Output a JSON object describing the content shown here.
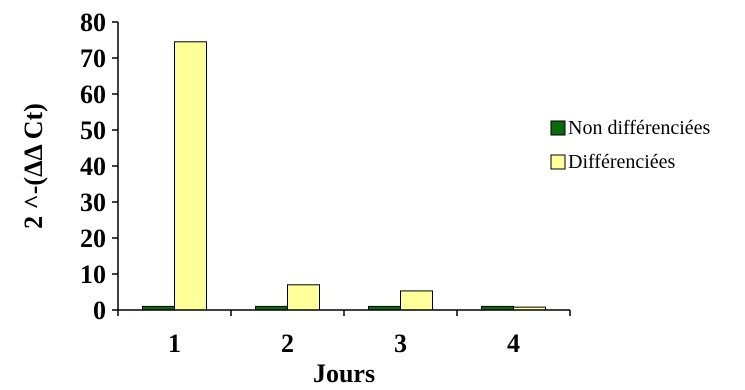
{
  "chart_data": {
    "type": "bar",
    "categories": [
      "1",
      "2",
      "3",
      "4"
    ],
    "series": [
      {
        "name": "Non différenciées",
        "values": [
          1,
          1,
          1,
          1
        ],
        "color": "#0a6a0a"
      },
      {
        "name": "Différenciées",
        "values": [
          74.5,
          7,
          5.3,
          0.8
        ],
        "color": "#ffff99"
      }
    ],
    "xlabel": "Jours",
    "ylabel": "2 ^-(ΔΔ Ct)",
    "ylim": [
      0,
      80
    ],
    "yticks": [
      "0",
      "10",
      "20",
      "30",
      "40",
      "50",
      "60",
      "70",
      "80"
    ],
    "grid": false,
    "legend_position": "right"
  }
}
